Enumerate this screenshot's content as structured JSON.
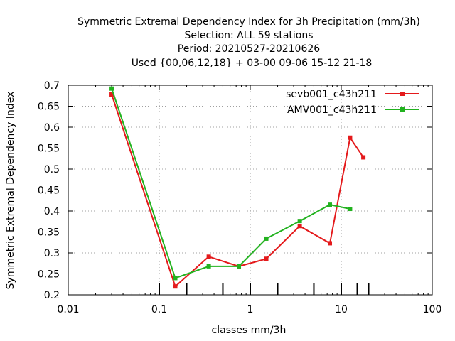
{
  "chart_data": {
    "type": "line",
    "title_lines": [
      "Symmetric Extremal Dependency Index  for 3h Precipitation (mm/3h)",
      "Selection: ALL     59 stations",
      "Period: 20210527-20210626",
      "Used {00,06,12,18} + 03-00 09-06 15-12 21-18"
    ],
    "xlabel": "classes mm/3h",
    "ylabel": "Symmetric Extremal Dependency Index",
    "xscale": "log",
    "xlim": [
      0.01,
      100
    ],
    "ylim": [
      0.2,
      0.7
    ],
    "x_tick_labels": [
      "0.01",
      "0.1",
      "1",
      "10",
      "100"
    ],
    "y_tick_labels": [
      "0.2",
      "0.25",
      "0.3",
      "0.35",
      "0.4",
      "0.45",
      "0.5",
      "0.55",
      "0.6",
      "0.65",
      "0.7"
    ],
    "grid": true,
    "legend_position": "top-right",
    "class_ticks": [
      0.1,
      0.2,
      0.5,
      1,
      2,
      5,
      10,
      15,
      20
    ],
    "series": [
      {
        "name": "sevb001_c43h211",
        "color": "#e41a1c",
        "x": [
          0.03,
          0.15,
          0.35,
          0.75,
          1.5,
          3.5,
          7.5,
          12.5,
          17.5
        ],
        "y": [
          0.678,
          0.22,
          0.291,
          0.268,
          0.286,
          0.364,
          0.323,
          0.575,
          0.528
        ]
      },
      {
        "name": "AMV001_c43h211",
        "color": "#22b21f",
        "x": [
          0.03,
          0.15,
          0.35,
          0.75,
          1.5,
          3.5,
          7.5,
          12.5
        ],
        "y": [
          0.692,
          0.24,
          0.268,
          0.268,
          0.334,
          0.376,
          0.415,
          0.405
        ]
      }
    ]
  }
}
